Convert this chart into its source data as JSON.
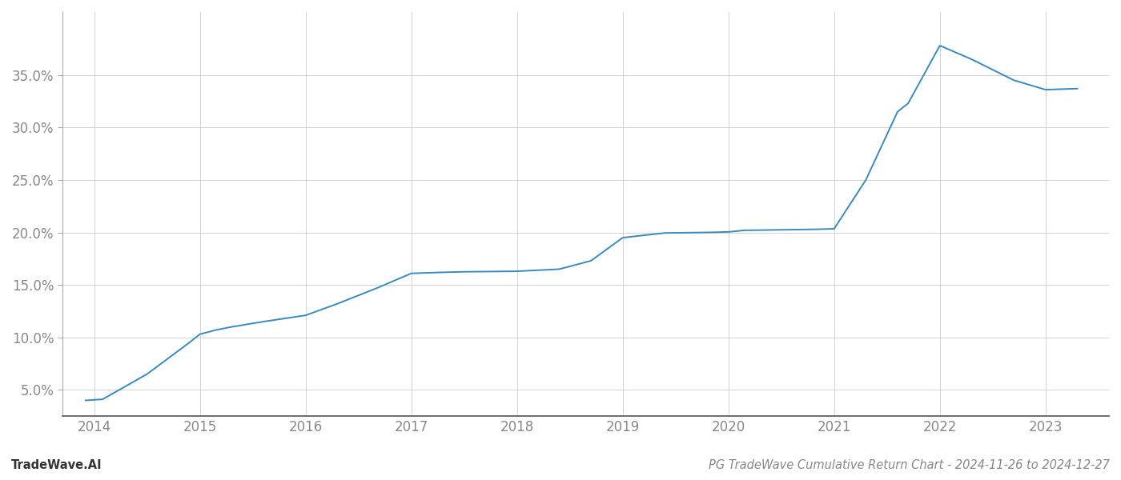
{
  "x_values": [
    2013.92,
    2014.0,
    2014.08,
    2014.5,
    2014.9,
    2015.0,
    2015.15,
    2015.3,
    2015.6,
    2016.0,
    2016.3,
    2016.7,
    2017.0,
    2017.3,
    2017.5,
    2018.0,
    2018.1,
    2018.4,
    2018.7,
    2019.0,
    2019.4,
    2019.8,
    2020.0,
    2020.05,
    2020.1,
    2020.15,
    2020.85,
    2021.0,
    2021.3,
    2021.6,
    2021.7,
    2022.0,
    2022.3,
    2022.5,
    2022.7,
    2023.0,
    2023.3
  ],
  "y_values": [
    4.0,
    4.05,
    4.1,
    6.5,
    9.5,
    10.3,
    10.7,
    11.0,
    11.5,
    12.1,
    13.2,
    14.8,
    16.1,
    16.2,
    16.25,
    16.3,
    16.35,
    16.5,
    17.3,
    19.5,
    19.95,
    20.0,
    20.05,
    20.1,
    20.15,
    20.2,
    20.3,
    20.35,
    25.0,
    31.5,
    32.3,
    37.8,
    36.5,
    35.5,
    34.5,
    33.6,
    33.7
  ],
  "line_color": "#3a8abf",
  "background_color": "#ffffff",
  "grid_color": "#cccccc",
  "title": "PG TradeWave Cumulative Return Chart - 2024-11-26 to 2024-12-27",
  "watermark": "TradeWave.AI",
  "yticks": [
    5.0,
    10.0,
    15.0,
    20.0,
    25.0,
    30.0,
    35.0
  ],
  "xticks": [
    2014,
    2015,
    2016,
    2017,
    2018,
    2019,
    2020,
    2021,
    2022,
    2023
  ],
  "xlim": [
    2013.7,
    2023.6
  ],
  "ylim": [
    2.5,
    41.0
  ],
  "title_fontsize": 10.5,
  "watermark_fontsize": 10.5,
  "tick_fontsize": 12,
  "line_width": 1.4
}
